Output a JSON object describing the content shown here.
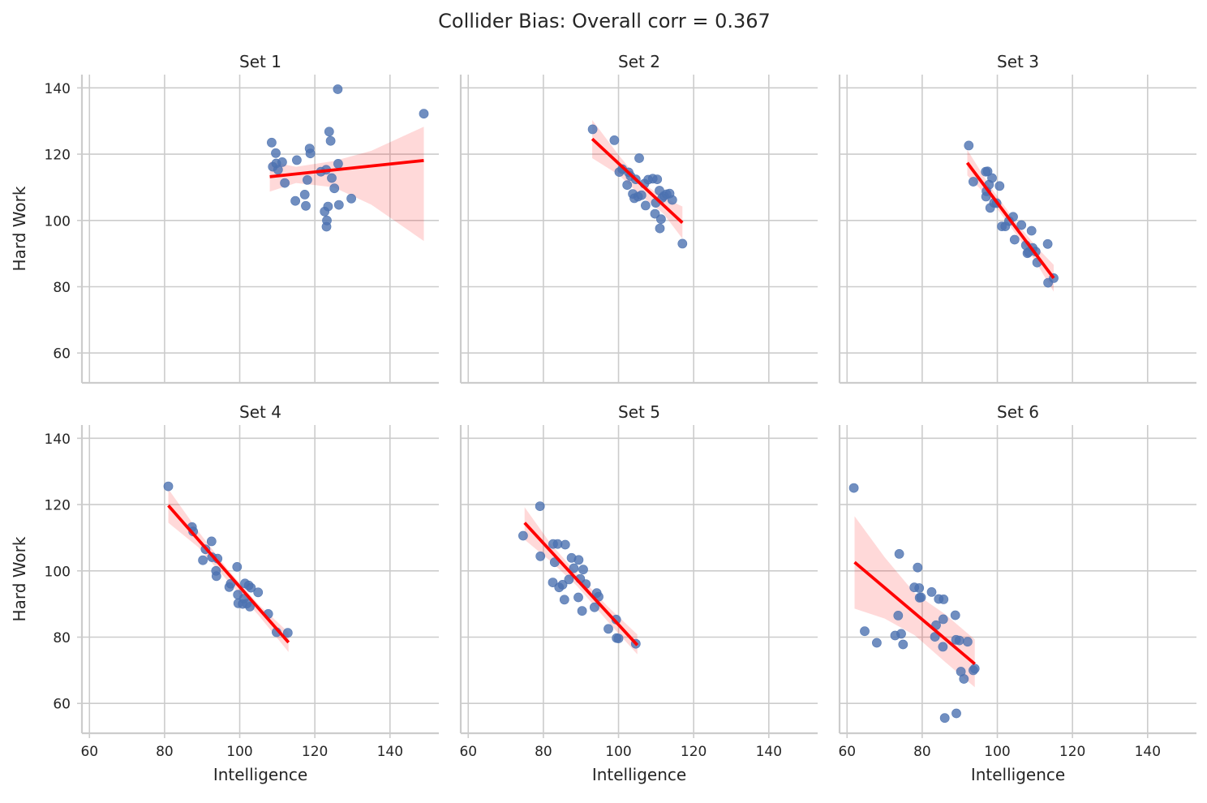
{
  "figure": {
    "title": "Collider Bias: Overall corr = 0.367"
  },
  "axes": {
    "xlabel": "Intelligence",
    "ylabel": "Hard Work",
    "xlim": [
      58,
      153
    ],
    "ylim": [
      51,
      144
    ],
    "xticks": [
      60,
      80,
      100,
      120,
      140
    ],
    "yticks": [
      60,
      80,
      100,
      120,
      140
    ],
    "sharex": true,
    "sharey": true,
    "grid": true
  },
  "colors": {
    "points": "#4c72b0",
    "regression_line": "#ff0000",
    "confidence_band": "#ff0000",
    "grid": "#cccccc",
    "spines": "#cccccc"
  },
  "chart_data": [
    {
      "type": "scatter",
      "title": "Set 1",
      "fit": {
        "x": [
          108,
          149
        ],
        "y": [
          113.2,
          118.1
        ]
      },
      "band": {
        "x": [
          108,
          115,
          125,
          135,
          149
        ],
        "lower": [
          108.7,
          111.3,
          110.0,
          104.8,
          93.8
        ],
        "upper": [
          117.8,
          116.2,
          117.9,
          121.0,
          128.3
        ]
      },
      "points": [
        [
          108.5,
          123.5
        ],
        [
          108.8,
          116.2
        ],
        [
          109.6,
          120.3
        ],
        [
          109.7,
          117.2
        ],
        [
          110.2,
          115.3
        ],
        [
          111.3,
          117.6
        ],
        [
          112.0,
          111.3
        ],
        [
          114.8,
          105.9
        ],
        [
          115.2,
          118.2
        ],
        [
          117.3,
          107.8
        ],
        [
          117.6,
          104.4
        ],
        [
          118.0,
          112.2
        ],
        [
          118.6,
          121.7
        ],
        [
          118.8,
          120.2
        ],
        [
          121.6,
          114.7
        ],
        [
          122.6,
          102.7
        ],
        [
          123.0,
          115.3
        ],
        [
          123.1,
          98.1
        ],
        [
          123.2,
          100.0
        ],
        [
          123.5,
          104.2
        ],
        [
          123.8,
          126.8
        ],
        [
          124.2,
          124.0
        ],
        [
          124.5,
          112.8
        ],
        [
          125.2,
          109.7
        ],
        [
          126.1,
          139.6
        ],
        [
          126.2,
          117.1
        ],
        [
          126.4,
          104.7
        ],
        [
          129.7,
          106.6
        ],
        [
          149.0,
          132.2
        ]
      ]
    },
    {
      "type": "scatter",
      "title": "Set 2",
      "fit": {
        "x": [
          93,
          117
        ],
        "y": [
          124.6,
          99.3
        ]
      },
      "band": {
        "x": [
          93,
          100,
          106,
          112,
          117
        ],
        "lower": [
          118.8,
          113.8,
          107.5,
          102.0,
          94.5
        ],
        "upper": [
          130.3,
          119.8,
          111.5,
          107.0,
          104.2
        ]
      },
      "points": [
        [
          93.1,
          127.5
        ],
        [
          98.9,
          124.2
        ],
        [
          100.2,
          114.6
        ],
        [
          101.0,
          115.5
        ],
        [
          102.3,
          110.7
        ],
        [
          102.7,
          114.5
        ],
        [
          103.2,
          113.4
        ],
        [
          103.8,
          108.0
        ],
        [
          104.2,
          106.7
        ],
        [
          104.6,
          112.4
        ],
        [
          105.2,
          107.2
        ],
        [
          105.5,
          118.8
        ],
        [
          106.1,
          107.6
        ],
        [
          106.9,
          111.1
        ],
        [
          107.2,
          104.5
        ],
        [
          107.9,
          112.3
        ],
        [
          109.1,
          112.6
        ],
        [
          109.7,
          102.0
        ],
        [
          109.9,
          105.3
        ],
        [
          110.3,
          112.4
        ],
        [
          110.9,
          109.0
        ],
        [
          111.0,
          97.6
        ],
        [
          111.3,
          100.4
        ],
        [
          111.6,
          106.8
        ],
        [
          112.1,
          107.4
        ],
        [
          112.8,
          107.9
        ],
        [
          113.6,
          108.1
        ],
        [
          114.3,
          106.2
        ],
        [
          117.0,
          93.0
        ]
      ]
    },
    {
      "type": "scatter",
      "title": "Set 3",
      "fit": {
        "x": [
          92,
          115
        ],
        "y": [
          117.4,
          82.6
        ]
      },
      "band": {
        "x": [
          92,
          98,
          104,
          110,
          115
        ],
        "lower": [
          113.6,
          106.5,
          97.3,
          87.9,
          78.5
        ],
        "upper": [
          121.3,
          110.4,
          101.0,
          92.5,
          86.6
        ]
      },
      "points": [
        [
          92.4,
          122.6
        ],
        [
          93.6,
          111.7
        ],
        [
          96.9,
          114.7
        ],
        [
          97.0,
          107.2
        ],
        [
          97.1,
          108.8
        ],
        [
          97.4,
          114.8
        ],
        [
          97.8,
          110.8
        ],
        [
          98.1,
          103.8
        ],
        [
          98.6,
          112.8
        ],
        [
          99.1,
          105.3
        ],
        [
          99.8,
          105.2
        ],
        [
          100.6,
          110.4
        ],
        [
          101.2,
          98.2
        ],
        [
          102.1,
          98.2
        ],
        [
          103.1,
          99.8
        ],
        [
          104.2,
          101.1
        ],
        [
          104.6,
          94.2
        ],
        [
          106.4,
          98.6
        ],
        [
          107.6,
          92.5
        ],
        [
          108.0,
          90.1
        ],
        [
          108.3,
          90.4
        ],
        [
          109.1,
          96.9
        ],
        [
          109.4,
          91.7
        ],
        [
          110.2,
          90.6
        ],
        [
          110.6,
          87.3
        ],
        [
          113.4,
          92.9
        ],
        [
          113.5,
          81.2
        ],
        [
          115.0,
          82.6
        ]
      ]
    },
    {
      "type": "scatter",
      "title": "Set 4",
      "fit": {
        "x": [
          81,
          113
        ],
        "y": [
          119.7,
          78.4
        ]
      },
      "band": {
        "x": [
          81,
          89,
          97,
          105,
          113
        ],
        "lower": [
          114.5,
          107.1,
          96.7,
          86.6,
          75.5
        ],
        "upper": [
          124.7,
          111.9,
          100.2,
          89.9,
          81.4
        ]
      },
      "points": [
        [
          81.0,
          125.5
        ],
        [
          87.3,
          113.2
        ],
        [
          87.6,
          111.9
        ],
        [
          90.2,
          103.2
        ],
        [
          90.9,
          106.5
        ],
        [
          92.5,
          108.9
        ],
        [
          92.6,
          104.1
        ],
        [
          93.7,
          100.0
        ],
        [
          93.8,
          98.4
        ],
        [
          94.1,
          103.7
        ],
        [
          97.2,
          95.1
        ],
        [
          97.6,
          96.1
        ],
        [
          99.3,
          101.2
        ],
        [
          99.5,
          92.8
        ],
        [
          99.6,
          90.2
        ],
        [
          100.8,
          90.0
        ],
        [
          101.1,
          91.6
        ],
        [
          101.4,
          96.2
        ],
        [
          101.9,
          90.1
        ],
        [
          102.4,
          95.6
        ],
        [
          102.7,
          89.2
        ],
        [
          103.0,
          94.9
        ],
        [
          104.9,
          93.5
        ],
        [
          107.6,
          87.0
        ],
        [
          109.8,
          81.5
        ],
        [
          112.8,
          81.3
        ]
      ]
    },
    {
      "type": "scatter",
      "title": "Set 5",
      "fit": {
        "x": [
          75,
          105
        ],
        "y": [
          114.5,
          77.6
        ]
      },
      "band": {
        "x": [
          75,
          82,
          89,
          97,
          105
        ],
        "lower": [
          109.4,
          102.8,
          95.4,
          84.9,
          74.8
        ],
        "upper": [
          119.2,
          108.1,
          99.2,
          89.4,
          80.8
        ]
      },
      "points": [
        [
          74.6,
          110.6
        ],
        [
          79.1,
          119.5
        ],
        [
          79.2,
          104.4
        ],
        [
          82.5,
          96.5
        ],
        [
          82.6,
          108.1
        ],
        [
          83.0,
          102.6
        ],
        [
          83.8,
          108.1
        ],
        [
          84.2,
          95.0
        ],
        [
          85.1,
          95.8
        ],
        [
          85.6,
          91.3
        ],
        [
          85.8,
          107.9
        ],
        [
          86.8,
          97.4
        ],
        [
          87.5,
          103.9
        ],
        [
          88.1,
          100.8
        ],
        [
          89.3,
          92.0
        ],
        [
          89.4,
          103.3
        ],
        [
          89.8,
          97.6
        ],
        [
          90.3,
          87.9
        ],
        [
          90.6,
          100.4
        ],
        [
          91.3,
          96.0
        ],
        [
          93.6,
          89.0
        ],
        [
          94.2,
          93.3
        ],
        [
          94.7,
          92.2
        ],
        [
          97.3,
          82.5
        ],
        [
          99.4,
          85.3
        ],
        [
          99.5,
          79.7
        ],
        [
          100.0,
          79.6
        ],
        [
          104.6,
          78.0
        ]
      ]
    },
    {
      "type": "scatter",
      "title": "Set 6",
      "fit": {
        "x": [
          62,
          94
        ],
        "y": [
          102.6,
          71.9
        ]
      },
      "band": {
        "x": [
          62,
          70,
          78,
          86,
          94
        ],
        "lower": [
          88.6,
          85.6,
          80.6,
          72.6,
          64.9
        ],
        "upper": [
          116.5,
          104.1,
          93.3,
          87.0,
          79.3
        ]
      },
      "points": [
        [
          61.8,
          125.0
        ],
        [
          64.7,
          81.8
        ],
        [
          67.9,
          78.3
        ],
        [
          72.8,
          80.5
        ],
        [
          73.6,
          86.5
        ],
        [
          73.9,
          105.1
        ],
        [
          74.4,
          81.0
        ],
        [
          74.9,
          77.8
        ],
        [
          77.9,
          95.0
        ],
        [
          78.8,
          101.0
        ],
        [
          79.2,
          94.8
        ],
        [
          79.3,
          91.9
        ],
        [
          79.7,
          92.0
        ],
        [
          82.5,
          93.6
        ],
        [
          83.4,
          80.1
        ],
        [
          83.7,
          83.6
        ],
        [
          84.4,
          91.5
        ],
        [
          85.5,
          77.1
        ],
        [
          85.6,
          85.4
        ],
        [
          85.7,
          91.4
        ],
        [
          86.0,
          55.6
        ],
        [
          88.8,
          86.6
        ],
        [
          89.0,
          79.2
        ],
        [
          89.1,
          57.0
        ],
        [
          89.9,
          79.0
        ],
        [
          90.3,
          69.6
        ],
        [
          91.1,
          67.4
        ],
        [
          92.1,
          78.6
        ],
        [
          93.6,
          70.0
        ],
        [
          94.0,
          70.5
        ]
      ]
    }
  ]
}
